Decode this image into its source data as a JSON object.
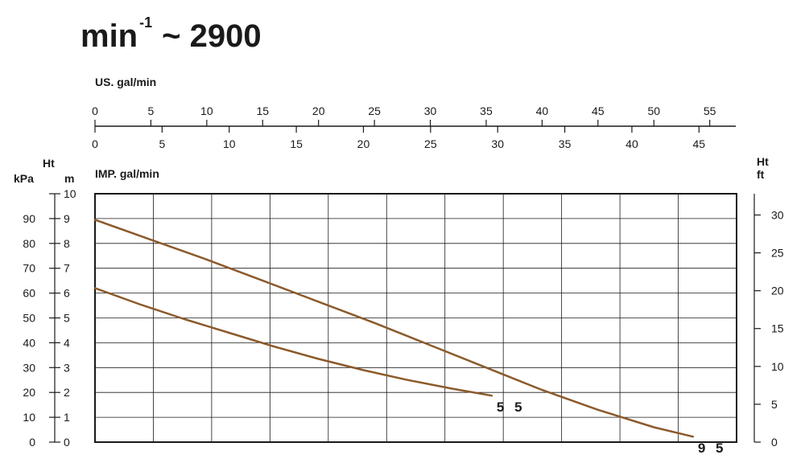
{
  "title": {
    "base": "min",
    "exponent": "-1",
    "rest": "~ 2900"
  },
  "chart_data": {
    "type": "line",
    "top_axis": {
      "label": "US. gal/min",
      "ticks": [
        "0",
        "5",
        "10",
        "15",
        "20",
        "25",
        "30",
        "35",
        "40",
        "45",
        "50",
        "55"
      ],
      "range": [
        0,
        57.4
      ]
    },
    "bottom_axis": {
      "label": "IMP. gal/min",
      "ticks": [
        "0",
        "5",
        "10",
        "15",
        "20",
        "25",
        "30",
        "35",
        "40",
        "45"
      ],
      "range": [
        0,
        47.8
      ]
    },
    "left_axes": {
      "header": "Ht",
      "kpa": {
        "label": "kPa",
        "ticks": [
          "0",
          "10",
          "20",
          "30",
          "40",
          "50",
          "60",
          "70",
          "80",
          "90"
        ]
      },
      "m": {
        "label": "m",
        "ticks": [
          "0",
          "1",
          "2",
          "3",
          "4",
          "5",
          "6",
          "7",
          "8",
          "9",
          "10"
        ],
        "range": [
          0,
          10
        ]
      }
    },
    "right_axis": {
      "label_line1": "Ht",
      "label_line2": "ft",
      "ticks": [
        "0",
        "5",
        "10",
        "15",
        "20",
        "25",
        "30"
      ]
    },
    "grid": true,
    "series": [
      {
        "name": "5 5",
        "color": "#8b5a2b",
        "x": [
          0,
          4,
          8,
          12,
          16,
          20,
          24,
          28,
          32,
          35.5
        ],
        "y": [
          6.2,
          5.55,
          4.95,
          4.4,
          3.85,
          3.35,
          2.9,
          2.5,
          2.15,
          1.87
        ]
      },
      {
        "name": "9 5",
        "color": "#8b5a2b",
        "x": [
          0,
          5,
          10,
          15,
          20,
          25,
          30,
          35,
          40,
          45,
          50,
          53.5
        ],
        "y": [
          8.95,
          8.15,
          7.35,
          6.5,
          5.65,
          4.8,
          3.9,
          3.0,
          2.1,
          1.3,
          0.6,
          0.22
        ]
      }
    ]
  }
}
